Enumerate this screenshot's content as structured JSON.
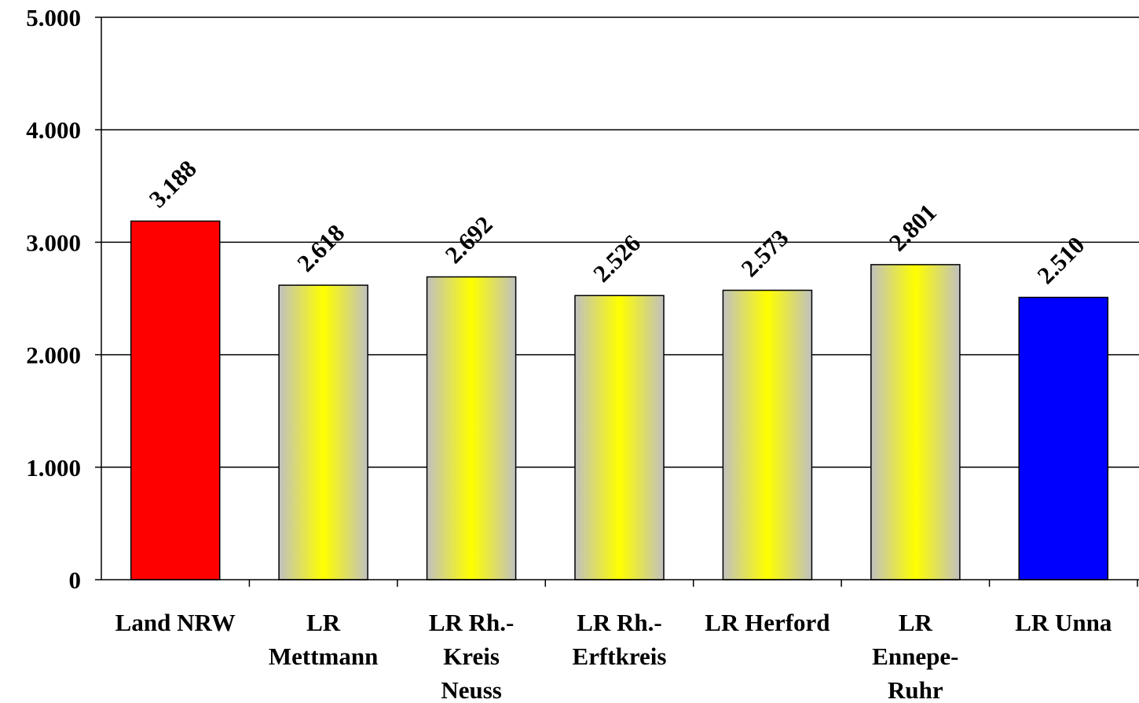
{
  "chart_data": {
    "type": "bar",
    "categories": [
      [
        "Land NRW"
      ],
      [
        "LR",
        "Mettmann"
      ],
      [
        "LR Rh.-",
        "Kreis",
        "Neuss"
      ],
      [
        "LR Rh.-",
        "Erftkreis"
      ],
      [
        "LR Herford"
      ],
      [
        "LR",
        "Ennepe-",
        "Ruhr"
      ],
      [
        "LR Unna"
      ]
    ],
    "values": [
      3188,
      2618,
      2692,
      2526,
      2573,
      2801,
      2510
    ],
    "value_labels": [
      "3.188",
      "2.618",
      "2.692",
      "2.526",
      "2.573",
      "2.801",
      "2.510"
    ],
    "bar_styles": [
      "red",
      "gradient",
      "gradient",
      "gradient",
      "gradient",
      "gradient",
      "blue"
    ],
    "colors": {
      "red": "#ff0000",
      "blue": "#0000ff",
      "gradient_edge": "#c0c0c0",
      "gradient_center": "#ffff00",
      "grid": "#000000",
      "axis": "#000000"
    },
    "ylim": [
      0,
      5000
    ],
    "yticks": [
      {
        "value": 0,
        "label": "0"
      },
      {
        "value": 1000,
        "label": "1.000"
      },
      {
        "value": 2000,
        "label": "2.000"
      },
      {
        "value": 3000,
        "label": "3.000"
      },
      {
        "value": 4000,
        "label": "4.000"
      },
      {
        "value": 5000,
        "label": "5.000"
      }
    ],
    "grid": true,
    "legend": false,
    "title": "",
    "xlabel": "",
    "ylabel": ""
  }
}
